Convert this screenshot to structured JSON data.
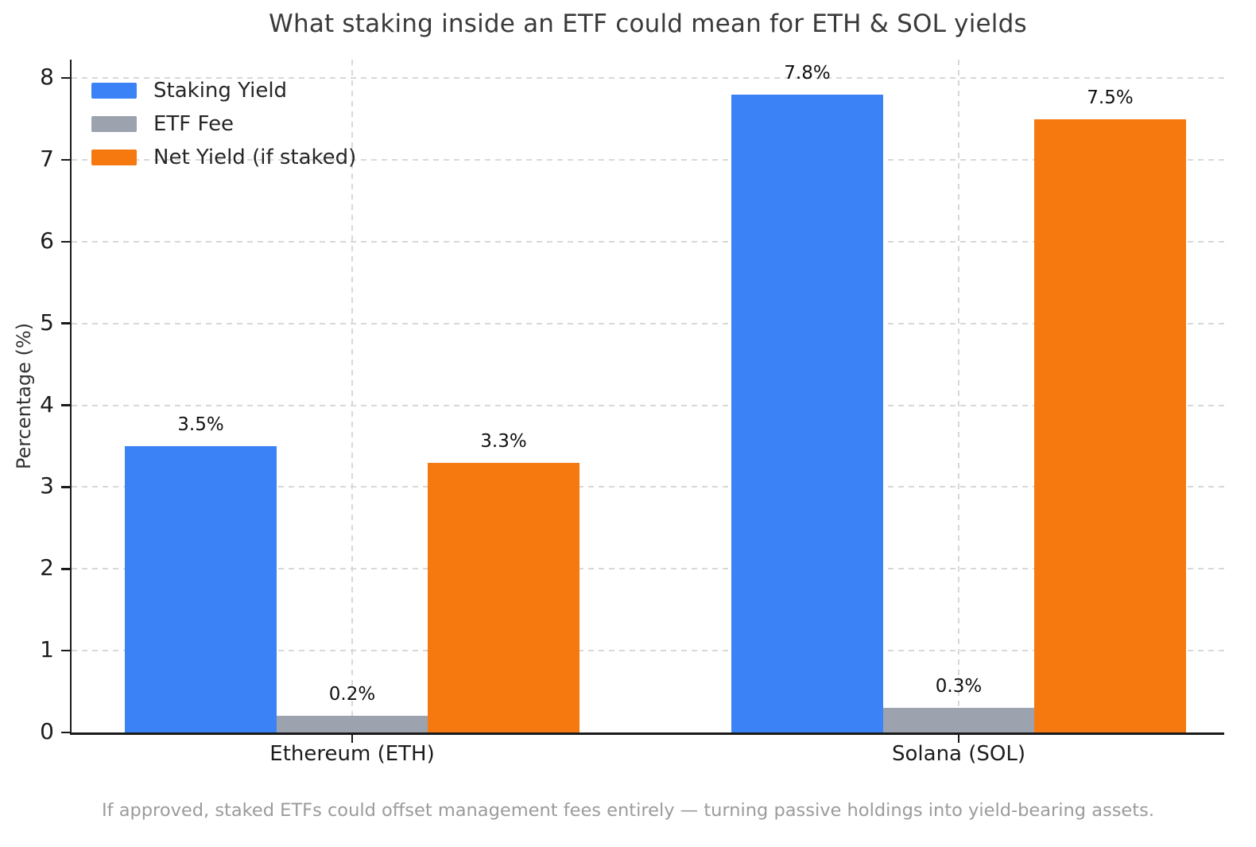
{
  "chart_data": {
    "type": "bar",
    "title": "What staking inside an ETF could mean for ETH & SOL yields",
    "categories": [
      "Ethereum (ETH)",
      "Solana (SOL)"
    ],
    "series": [
      {
        "name": "Staking Yield",
        "color": "#3b82f6",
        "values": [
          3.5,
          7.8
        ],
        "data_labels": [
          "3.5%",
          "7.8%"
        ]
      },
      {
        "name": "ETF Fee",
        "color": "#9ca3af",
        "values": [
          0.2,
          0.3
        ],
        "data_labels": [
          "0.2%",
          "0.3%"
        ]
      },
      {
        "name": "Net Yield (if staked)",
        "color": "#f5790f",
        "values": [
          3.3,
          7.5
        ],
        "data_labels": [
          "3.3%",
          "7.5%"
        ]
      }
    ],
    "xlabel": "",
    "ylabel": "Percentage (%)",
    "ylim": [
      0,
      8.225
    ],
    "yticks": [
      0,
      1,
      2,
      3,
      4,
      5,
      6,
      7,
      8
    ],
    "grid": true,
    "legend_position": "upper left",
    "caption": "If approved, staked ETFs could offset management fees entirely — turning passive holdings into yield-bearing assets."
  }
}
